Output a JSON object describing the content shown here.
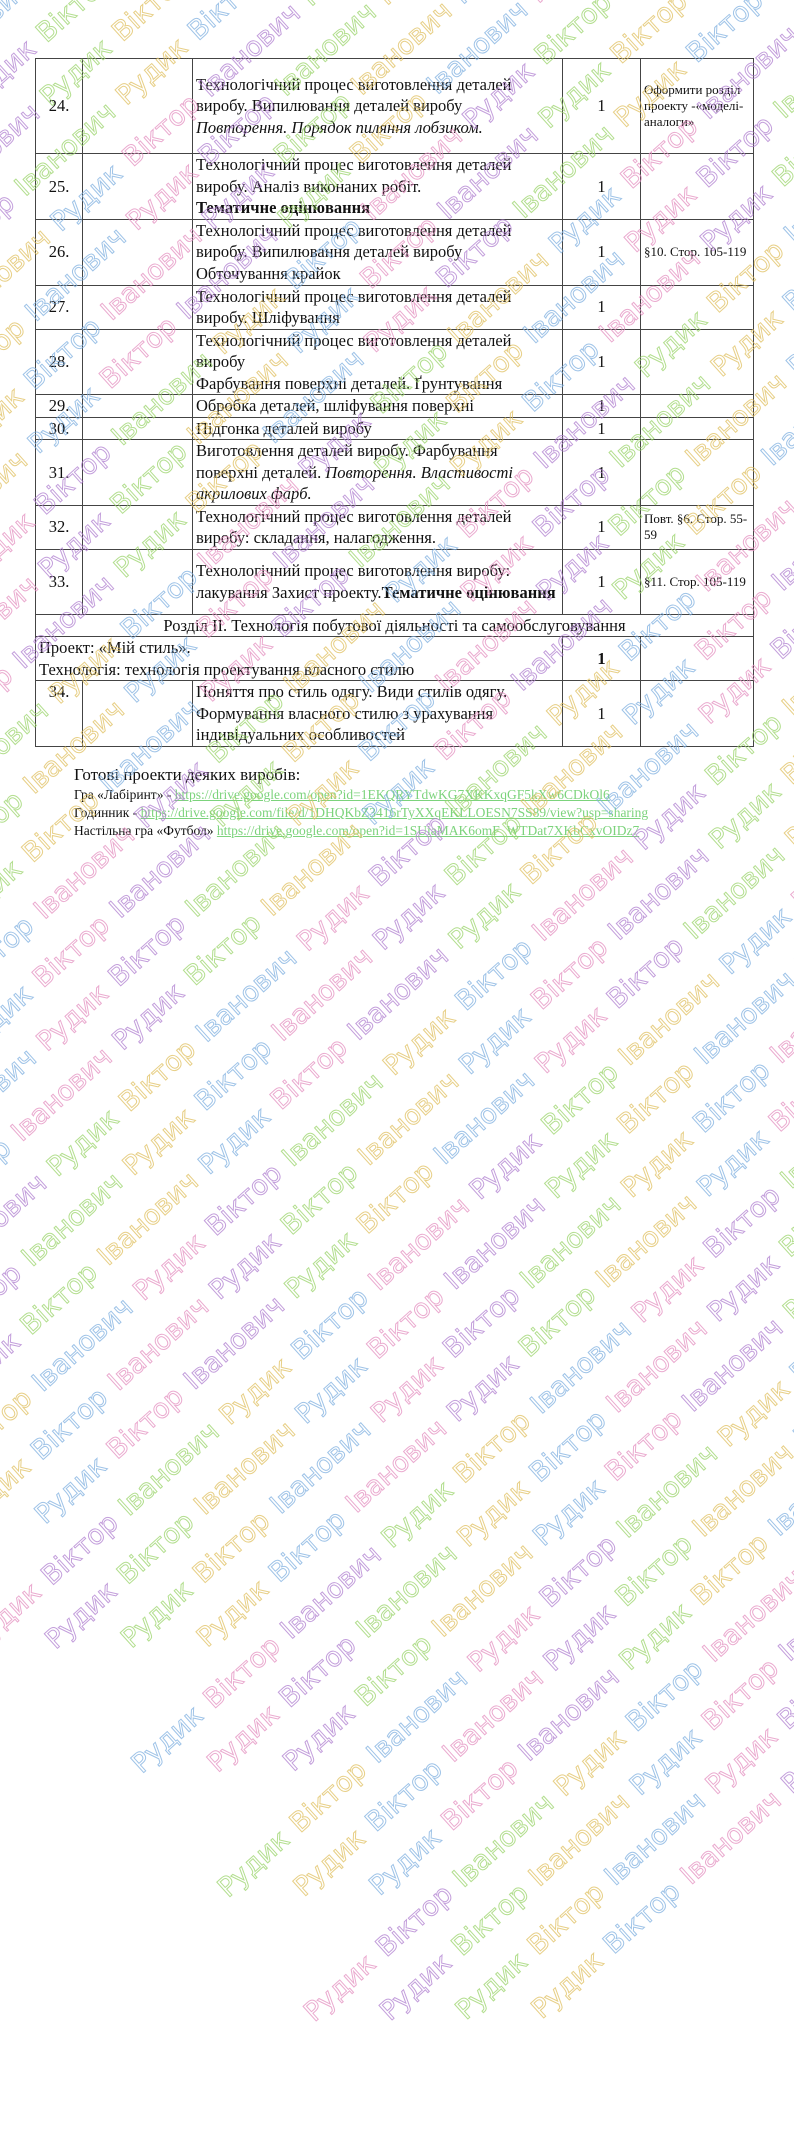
{
  "watermark": {
    "words": [
      "Рудик",
      "Віктор",
      "Іванович"
    ],
    "colors": [
      "#e48fc0",
      "#b07fd0",
      "#9ad46a",
      "#e0c060",
      "#7fb0e0"
    ]
  },
  "table": {
    "rows": [
      {
        "num": "24.",
        "topic": [
          {
            "t": "Технологічний процес виготовлення деталей виробу. Випилювання деталей виробу",
            "s": ""
          },
          {
            "t": "Повторення. Порядок пиляння лобзиком.",
            "s": "it",
            "br": true
          }
        ],
        "hours": "1",
        "hw": "Оформити розділ проекту -«моделі-аналоги»",
        "h": 95
      },
      {
        "num": "25.",
        "topic": [
          {
            "t": "Технологічний процес виготовлення деталей виробу. Аналіз виконаних робіт.",
            "s": ""
          },
          {
            "t": "Тематичне оцінювання",
            "s": "b",
            "br": true
          }
        ],
        "hours": "1",
        "hw": "",
        "h": 65
      },
      {
        "num": "26.",
        "topic": [
          {
            "t": "Технологічний процес виготовлення деталей виробу. Випилювання деталей виробу",
            "s": ""
          },
          {
            "t": "Обточування крайок",
            "s": "",
            "br": true
          }
        ],
        "hours": "1",
        "hw": "§10. Стор. 105-119",
        "h": 66
      },
      {
        "num": "27.",
        "topic": [
          {
            "t": "Технологічний процес виготовлення деталей виробу. Шліфування",
            "s": ""
          }
        ],
        "hours": "1",
        "hw": "",
        "h": 43
      },
      {
        "num": "28.",
        "topic": [
          {
            "t": "Технологічний процес виготовлення деталей виробу",
            "s": ""
          },
          {
            "t": "Фарбування поверхні деталей. Ґрунтування",
            "s": "",
            "br": true
          }
        ],
        "hours": "1",
        "hw": "",
        "h": 65
      },
      {
        "num": "29.",
        "topic": [
          {
            "t": "Обробка деталей, шліфування поверхні",
            "s": ""
          }
        ],
        "hours": "1",
        "hw": "",
        "h": 22
      },
      {
        "num": "30.",
        "topic": [
          {
            "t": "Підгонка деталей виробу",
            "s": ""
          }
        ],
        "hours": "1",
        "hw": "",
        "h": 22
      },
      {
        "num": "31.",
        "topic": [
          {
            "t": "Виготовлення деталей виробу. Фарбування поверхні деталей. ",
            "s": ""
          },
          {
            "t": "Повторення. Властивості акрилових фарб.",
            "s": "it"
          }
        ],
        "hours": "1",
        "hw": "",
        "h": 65
      },
      {
        "num": "32.",
        "topic": [
          {
            "t": "Технологічний процес виготовлення деталей виробу: складання, налагодження.",
            "s": ""
          }
        ],
        "hours": "1",
        "hw": "Повт. §6. Стор. 55-59",
        "h": 44
      },
      {
        "num": "33.",
        "topic": [
          {
            "t": "Технологічний процес виготовлення виробу: лакування Захист проекту.",
            "s": ""
          },
          {
            "t": "Тематичне оцінювання",
            "s": "b"
          }
        ],
        "hours": "1",
        "hw": "§11. Стор. 105-119",
        "h": 65
      }
    ],
    "section_title": "Розділ ІІ. Технологія побутової діяльності та самообслуговування",
    "project": {
      "line1": "Проект: «Мій стиль».",
      "line2": "Технологія: технологія проектування власного стилю",
      "hours": "1"
    },
    "last_row": {
      "num": "34.",
      "topic": "Поняття про стиль одягу. Види стилів одягу. Формування власного стилю з урахування індивідуальних особливостей",
      "hours": "1",
      "hw": ""
    }
  },
  "extras": {
    "heading": "Готові проекти деяких виробів:",
    "items": [
      {
        "label": "Гра «Лабіринт» - ",
        "link": "https://drive.google.com/open?id=1EKQRYTdwKG7XKKxqGF5kXw6CDkOl6"
      },
      {
        "label": "Годинник - ",
        "link": "https://drive.google.com/file/d/1DHQKbZ3416rTyXXqEKLLOESN7SS89/view?usp=sharing"
      },
      {
        "label": "Настільна гра «Футбол» ",
        "link": "https://drive.google.com/open?id=1SUiaMAK6omF_WTDat7XKbCxvOIDz7"
      }
    ]
  }
}
